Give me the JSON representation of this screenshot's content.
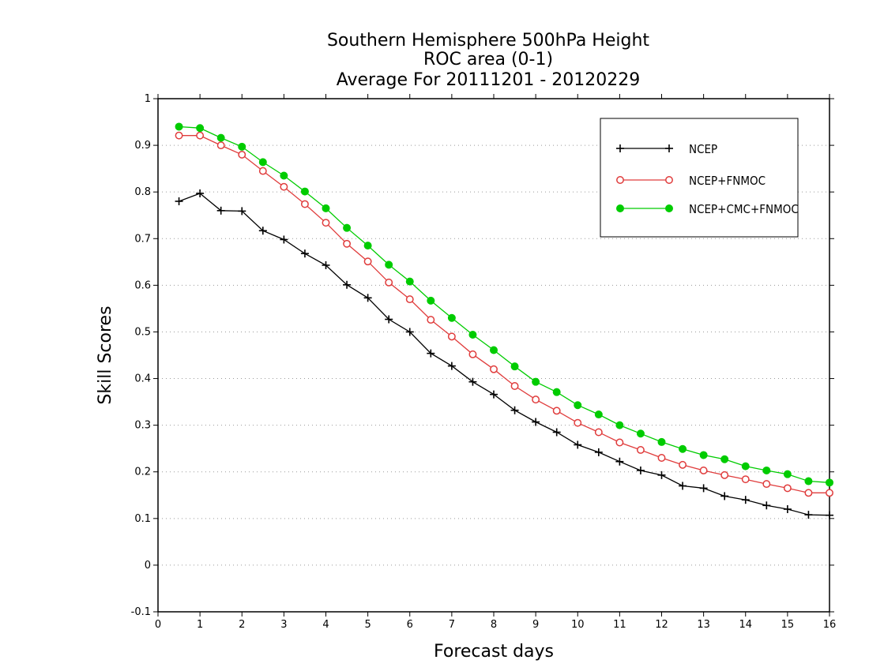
{
  "chart_data": {
    "type": "line",
    "title": [
      "Southern Hemisphere 500hPa Height",
      "ROC area (0-1)",
      "Average For 20111201 - 20120229"
    ],
    "xlabel": "Forecast days",
    "ylabel": "Skill Scores",
    "xlim": [
      0,
      16
    ],
    "ylim": [
      -0.1,
      1
    ],
    "xticks": [
      0,
      1,
      2,
      3,
      4,
      5,
      6,
      7,
      8,
      9,
      10,
      11,
      12,
      13,
      14,
      15,
      16
    ],
    "yticks": [
      -0.1,
      0,
      0.1,
      0.2,
      0.3,
      0.4,
      0.5,
      0.6,
      0.7,
      0.8,
      0.9,
      1
    ],
    "ytick_labels": [
      "-0.1",
      "0",
      "0.1",
      "0.2",
      "0.3",
      "0.4",
      "0.5",
      "0.6",
      "0.7",
      "0.8",
      "0.9",
      "1"
    ],
    "grid": "horizontal-dotted",
    "legend_position": "top-right",
    "x": [
      0.5,
      1,
      1.5,
      2,
      2.5,
      3,
      3.5,
      4,
      4.5,
      5,
      5.5,
      6,
      6.5,
      7,
      7.5,
      8,
      8.5,
      9,
      9.5,
      10,
      10.5,
      11,
      11.5,
      12,
      12.5,
      13,
      13.5,
      14,
      14.5,
      15,
      15.5,
      16
    ],
    "series": [
      {
        "name": "NCEP",
        "color": "#000000",
        "marker": "plus",
        "values": [
          0.78,
          0.797,
          0.76,
          0.759,
          0.717,
          0.698,
          0.668,
          0.643,
          0.601,
          0.573,
          0.527,
          0.5,
          0.454,
          0.427,
          0.393,
          0.366,
          0.332,
          0.307,
          0.285,
          0.258,
          0.242,
          0.222,
          0.203,
          0.193,
          0.17,
          0.165,
          0.148,
          0.14,
          0.128,
          0.12,
          0.108,
          0.107
        ]
      },
      {
        "name": "NCEP+FNMOC",
        "color": "#e03c3c",
        "marker": "open-circle",
        "values": [
          0.921,
          0.921,
          0.9,
          0.88,
          0.845,
          0.811,
          0.774,
          0.734,
          0.689,
          0.651,
          0.606,
          0.57,
          0.526,
          0.49,
          0.452,
          0.42,
          0.384,
          0.355,
          0.331,
          0.305,
          0.285,
          0.263,
          0.247,
          0.23,
          0.215,
          0.203,
          0.193,
          0.184,
          0.174,
          0.165,
          0.155,
          0.155
        ]
      },
      {
        "name": "NCEP+CMC+FNMOC",
        "color": "#00cc00",
        "marker": "filled-circle",
        "values": [
          0.94,
          0.937,
          0.916,
          0.897,
          0.864,
          0.835,
          0.801,
          0.765,
          0.723,
          0.685,
          0.644,
          0.608,
          0.567,
          0.53,
          0.494,
          0.461,
          0.426,
          0.393,
          0.371,
          0.343,
          0.323,
          0.3,
          0.282,
          0.264,
          0.249,
          0.236,
          0.227,
          0.212,
          0.203,
          0.195,
          0.18,
          0.177
        ]
      }
    ]
  }
}
